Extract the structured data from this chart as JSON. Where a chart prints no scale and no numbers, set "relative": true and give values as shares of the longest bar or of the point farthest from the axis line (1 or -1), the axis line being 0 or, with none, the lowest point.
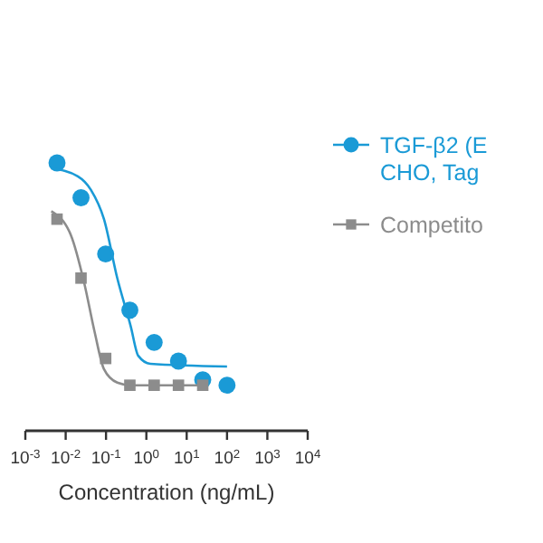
{
  "chart_data": {
    "type": "scatter",
    "relative": true,
    "xlabel": "Concentration (ng/mL)",
    "log": "x",
    "xlim": [
      0.001,
      10000
    ],
    "xticks": [
      {
        "value": 0.001,
        "label": "10$^{-3}$"
      },
      {
        "value": 0.01,
        "label": "10$^{-2}$"
      },
      {
        "value": 0.1,
        "label": "10$^{-1}$"
      },
      {
        "value": 1,
        "label": "10$^{0}$"
      },
      {
        "value": 10,
        "label": "10$^{1}$"
      },
      {
        "value": 100,
        "label": "10$^{2}$"
      },
      {
        "value": 1000,
        "label": "10$^{3}$"
      },
      {
        "value": 10000,
        "label": "10$^{4}$"
      }
    ],
    "legend": "right",
    "grid": false,
    "series": [
      {
        "name": "TGF-β2 (E CHO, Tag",
        "marker": "circle",
        "color": "#1a9ad6",
        "x": [
          0.0061,
          0.024,
          0.098,
          0.39,
          1.56,
          6.25,
          25,
          100
        ],
        "values": [
          1,
          0.87,
          0.66,
          0.45,
          0.33,
          0.26,
          0.19,
          0.17
        ]
      },
      {
        "name": "Competito",
        "marker": "square",
        "color": "#8c8c8c",
        "x": [
          0.0061,
          0.024,
          0.098,
          0.39,
          1.56,
          6.25,
          25
        ],
        "values": [
          0.79,
          0.57,
          0.27,
          0.17,
          0.17,
          0.17,
          0.17
        ]
      },
      {
        "type": "line",
        "marker": "none",
        "color": "#1a9ad6",
        "x": [
          0.0044,
          0.02,
          0.042,
          0.089,
          0.19,
          0.41,
          0.63,
          1.26,
          100
        ],
        "values": [
          0.98,
          0.95,
          0.9,
          0.79,
          0.57,
          0.39,
          0.28,
          0.25,
          0.24
        ]
      },
      {
        "type": "line",
        "marker": "none",
        "color": "#8c8c8c",
        "x": [
          0.0044,
          0.0135,
          0.029,
          0.052,
          0.089,
          0.19,
          0.41,
          25
        ],
        "values": [
          0.82,
          0.73,
          0.55,
          0.37,
          0.23,
          0.18,
          0.17,
          0.17
        ]
      }
    ]
  }
}
